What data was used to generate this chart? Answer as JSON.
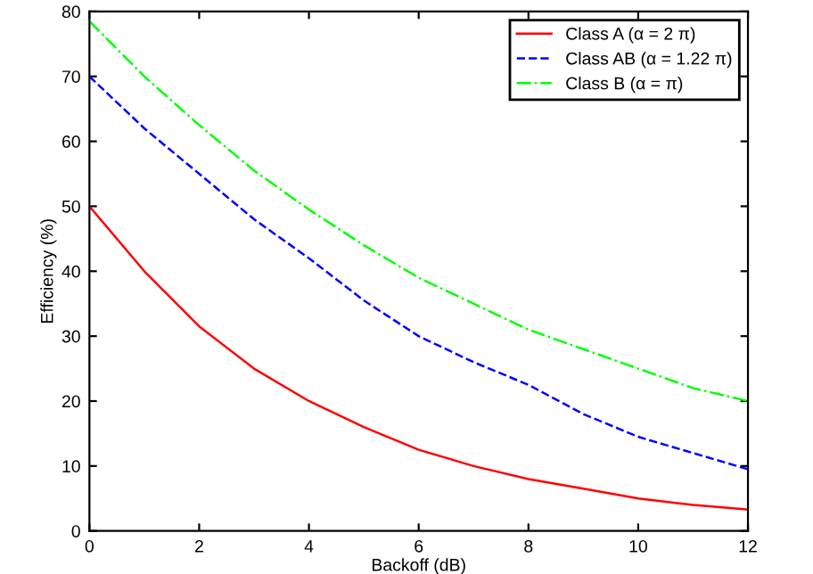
{
  "chart_data": {
    "type": "line",
    "xlabel": "Backoff (dB)",
    "ylabel": "Efficiency (%)",
    "x": [
      0,
      1,
      2,
      3,
      4,
      5,
      6,
      7,
      8,
      9,
      10,
      11,
      12
    ],
    "series": [
      {
        "name": "Class A (α = 2 π)",
        "color": "#ff0000",
        "line_style": "solid",
        "values": [
          50,
          40,
          31.5,
          25,
          20,
          16,
          12.5,
          10,
          8,
          6.5,
          5,
          4,
          3.3
        ]
      },
      {
        "name": "Class AB (α = 1.22 π)",
        "color": "#0000ff",
        "line_style": "dashed",
        "values": [
          70,
          62,
          55,
          48,
          42,
          35.5,
          30,
          26,
          22.5,
          18,
          14.5,
          12,
          9.5
        ]
      },
      {
        "name": "Class B (α = π)",
        "color": "#00ff00",
        "line_style": "dashdot",
        "values": [
          78.5,
          70,
          62.5,
          55.5,
          49.5,
          44,
          39,
          35,
          31,
          28,
          25,
          22,
          20
        ]
      }
    ],
    "xlim": [
      0,
      12
    ],
    "ylim": [
      0,
      80
    ],
    "xticks": [
      0,
      2,
      4,
      6,
      8,
      10,
      12
    ],
    "yticks": [
      0,
      10,
      20,
      30,
      40,
      50,
      60,
      70,
      80
    ],
    "grid": false,
    "legend": "top right",
    "marker": "none"
  }
}
